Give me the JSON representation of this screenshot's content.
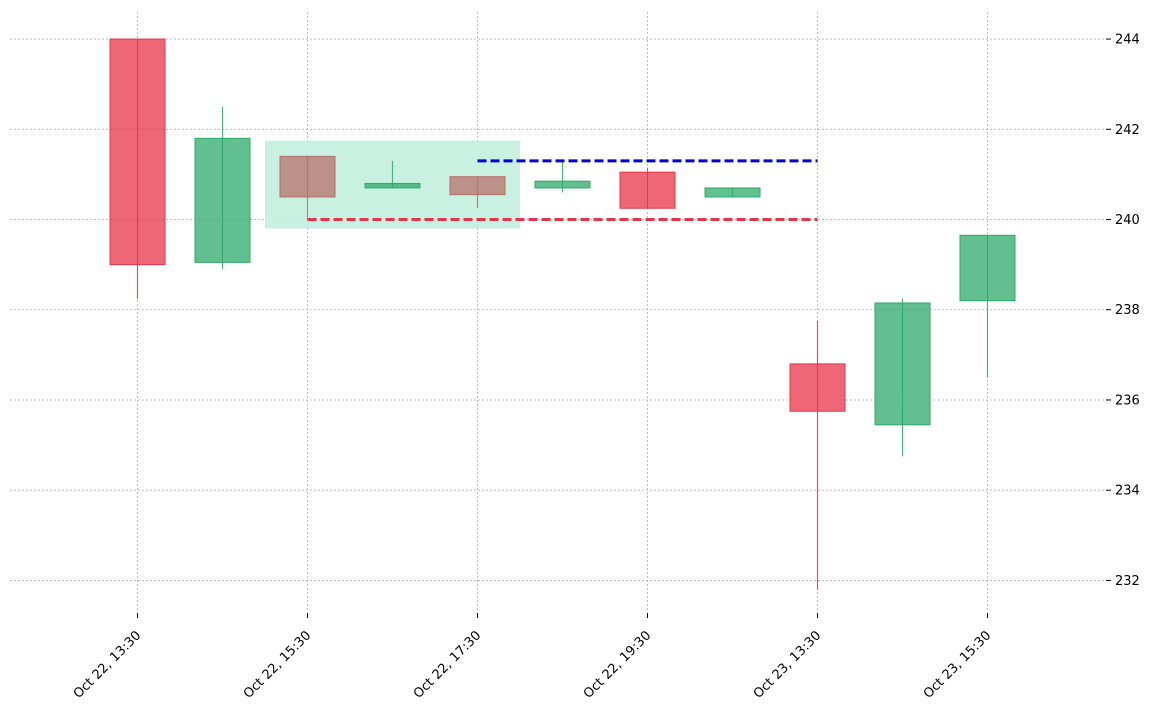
{
  "chart_data": {
    "type": "candlestick",
    "title": "",
    "xlabel": "",
    "ylabel": "",
    "ylim": [
      231.3,
      244.6
    ],
    "y_ticks": [
      232,
      234,
      236,
      238,
      240,
      242,
      244
    ],
    "grid": true,
    "x_tick_labels": [
      {
        "index": 0,
        "label": "Oct 22, 13:30"
      },
      {
        "index": 2,
        "label": "Oct 22, 15:30"
      },
      {
        "index": 4,
        "label": "Oct 22, 17:30"
      },
      {
        "index": 6,
        "label": "Oct 22, 19:30"
      },
      {
        "index": 8,
        "label": "Oct 23, 13:30"
      },
      {
        "index": 10,
        "label": "Oct 23, 15:30"
      }
    ],
    "candles": [
      {
        "open": 244.0,
        "high": 244.0,
        "low": 238.25,
        "close": 239.0
      },
      {
        "open": 239.05,
        "high": 242.5,
        "low": 238.9,
        "close": 241.8
      },
      {
        "open": 241.4,
        "high": 241.4,
        "low": 240.0,
        "close": 240.5
      },
      {
        "open": 240.7,
        "high": 241.3,
        "low": 240.7,
        "close": 240.8
      },
      {
        "open": 240.95,
        "high": 240.95,
        "low": 240.25,
        "close": 240.55
      },
      {
        "open": 240.7,
        "high": 241.3,
        "low": 240.6,
        "close": 240.85
      },
      {
        "open": 241.05,
        "high": 241.15,
        "low": 240.25,
        "close": 240.25
      },
      {
        "open": 240.5,
        "high": 240.7,
        "low": 240.5,
        "close": 240.7
      },
      {
        "open": 236.8,
        "high": 237.75,
        "low": 231.8,
        "close": 235.75
      },
      {
        "open": 235.45,
        "high": 238.25,
        "low": 234.75,
        "close": 238.15
      },
      {
        "open": 238.2,
        "high": 239.65,
        "low": 236.5,
        "close": 239.65
      }
    ],
    "highlight_zone": {
      "x_start": 1.5,
      "x_end": 4.5,
      "y_low": 239.8,
      "y_high": 241.75,
      "color": "#c6f0e0"
    },
    "levels": [
      {
        "y": 241.3,
        "x_start": 4,
        "x_end": 8,
        "color": "#0000dd"
      },
      {
        "y": 240.0,
        "x_start": 2,
        "x_end": 8,
        "color": "#e8344a"
      }
    ],
    "colors": {
      "up": "#2eaa6a",
      "down": "#e8344a",
      "zone_candle": "#b5706a"
    }
  }
}
